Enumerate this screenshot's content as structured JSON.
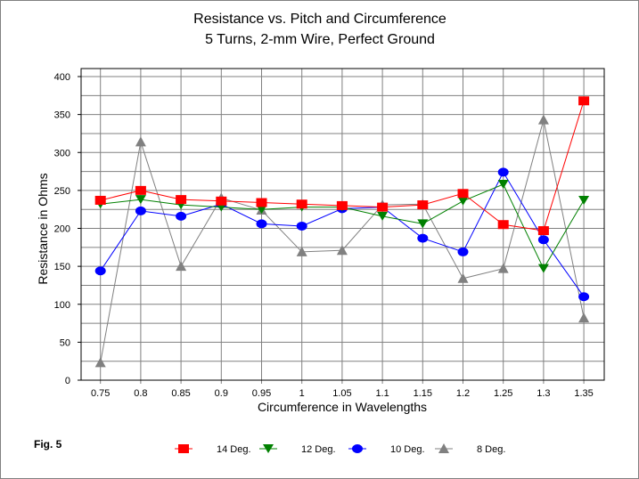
{
  "chart_data": {
    "type": "line",
    "title": "Resistance vs. Pitch and Circumference",
    "subtitle": "5 Turns, 2-mm Wire, Perfect Ground",
    "xlabel": "Circumference in Wavelengths",
    "ylabel": "Resistance in Ohms",
    "figure_label": "Fig. 5",
    "categories": [
      "0.75",
      "0.8",
      "0.85",
      "0.9",
      "0.95",
      "1",
      "1.05",
      "1.1",
      "1.15",
      "1.2",
      "1.25",
      "1.3",
      "1.35"
    ],
    "ylim": [
      0,
      400
    ],
    "yticks": [
      "0",
      "50",
      "100",
      "150",
      "200",
      "250",
      "300",
      "350",
      "400"
    ],
    "grid": true,
    "legend": "bottom",
    "series": [
      {
        "name": "14 Deg.",
        "color": "#ff0000",
        "marker": "square",
        "values": [
          237,
          250,
          238,
          236,
          234,
          232,
          230,
          228,
          231,
          246,
          205,
          197,
          368
        ]
      },
      {
        "name": "12 Deg.",
        "color": "#008000",
        "marker": "triangle-down",
        "values": [
          232,
          238,
          231,
          228,
          225,
          228,
          228,
          216,
          206,
          236,
          258,
          147,
          237
        ]
      },
      {
        "name": "10 Deg.",
        "color": "#0000ff",
        "marker": "circle",
        "values": [
          144,
          223,
          216,
          232,
          206,
          203,
          226,
          228,
          187,
          169,
          274,
          185,
          110
        ]
      },
      {
        "name": "8 Deg.",
        "color": "#808080",
        "marker": "triangle-up",
        "values": [
          23,
          314,
          150,
          240,
          224,
          169,
          171,
          231,
          232,
          134,
          147,
          343,
          82
        ]
      }
    ]
  }
}
